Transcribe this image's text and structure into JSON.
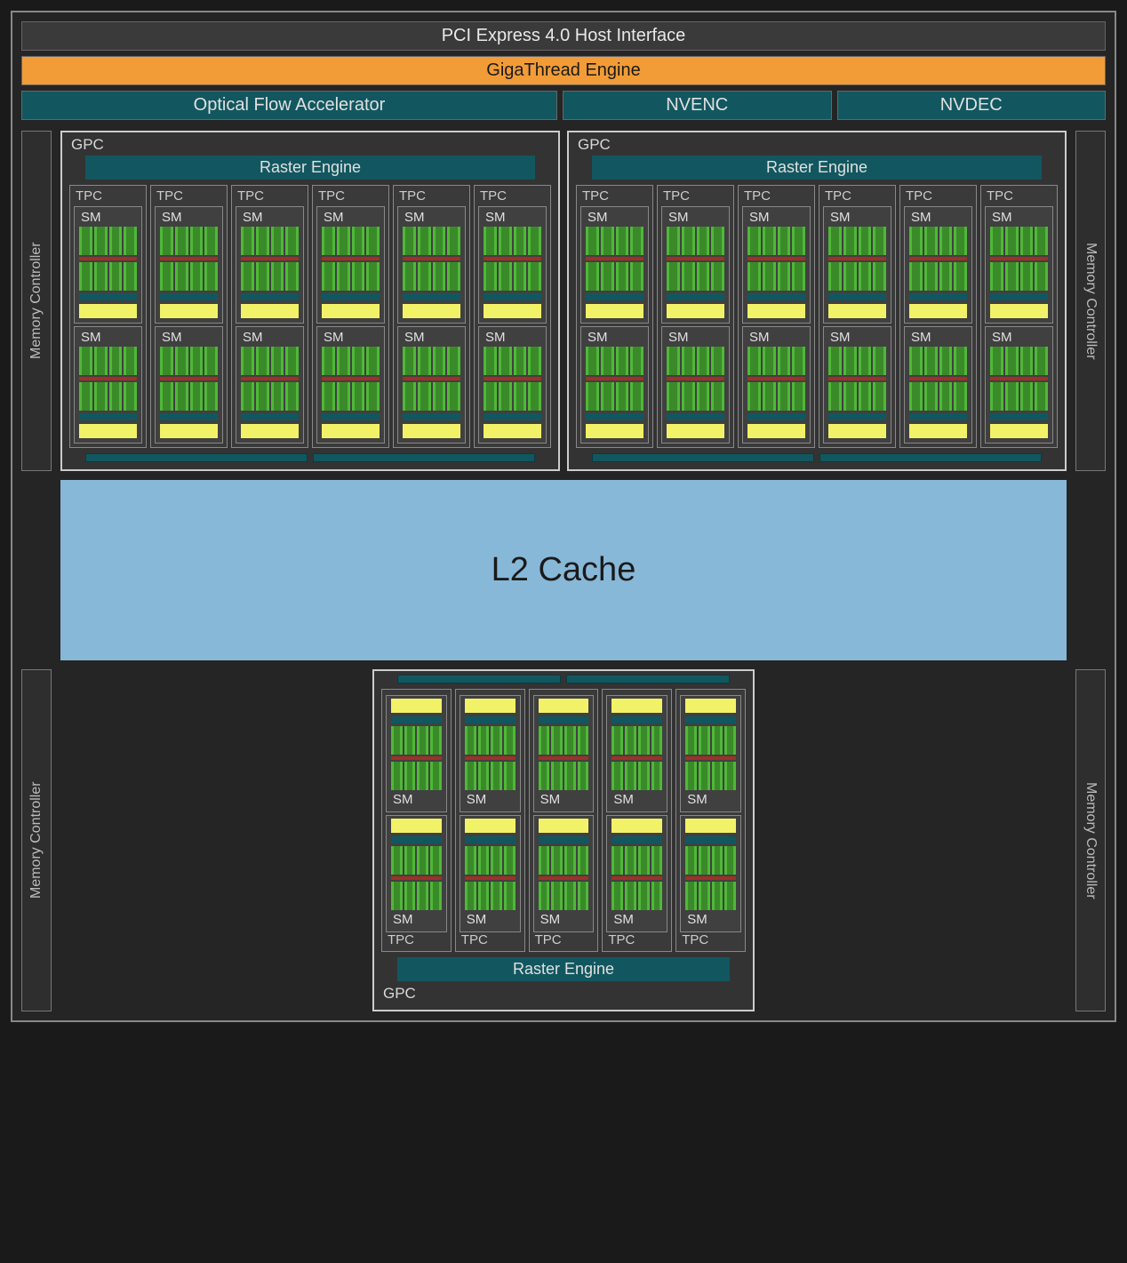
{
  "colors": {
    "background": "#1a1a1a",
    "panel": "#252525",
    "border": "#888888",
    "bar_dark": "#3a3a3a",
    "bar_orange": "#f29c38",
    "bar_teal": "#12575f",
    "l2_blue": "#87b8d8",
    "core_green": "#3a8a2a",
    "core_green_edge": "#4fb838",
    "core_red": "#a03028",
    "core_yellow": "#f2f268"
  },
  "labels": {
    "pcie": "PCI Express 4.0 Host Interface",
    "giga": "GigaThread Engine",
    "ofa": "Optical Flow Accelerator",
    "nvenc": "NVENC",
    "nvdec": "NVDEC",
    "memctrl": "Memory Controller",
    "gpc": "GPC",
    "raster": "Raster Engine",
    "tpc": "TPC",
    "sm": "SM",
    "l2": "L2 Cache"
  },
  "layout": {
    "top_gpcs": 2,
    "tpcs_per_top_gpc": 6,
    "sms_per_tpc": 2,
    "bottom_gpc_tpcs": 5,
    "memory_controllers": 4,
    "core_slices_per_block": 4,
    "core_blocks_per_sm": 2
  }
}
